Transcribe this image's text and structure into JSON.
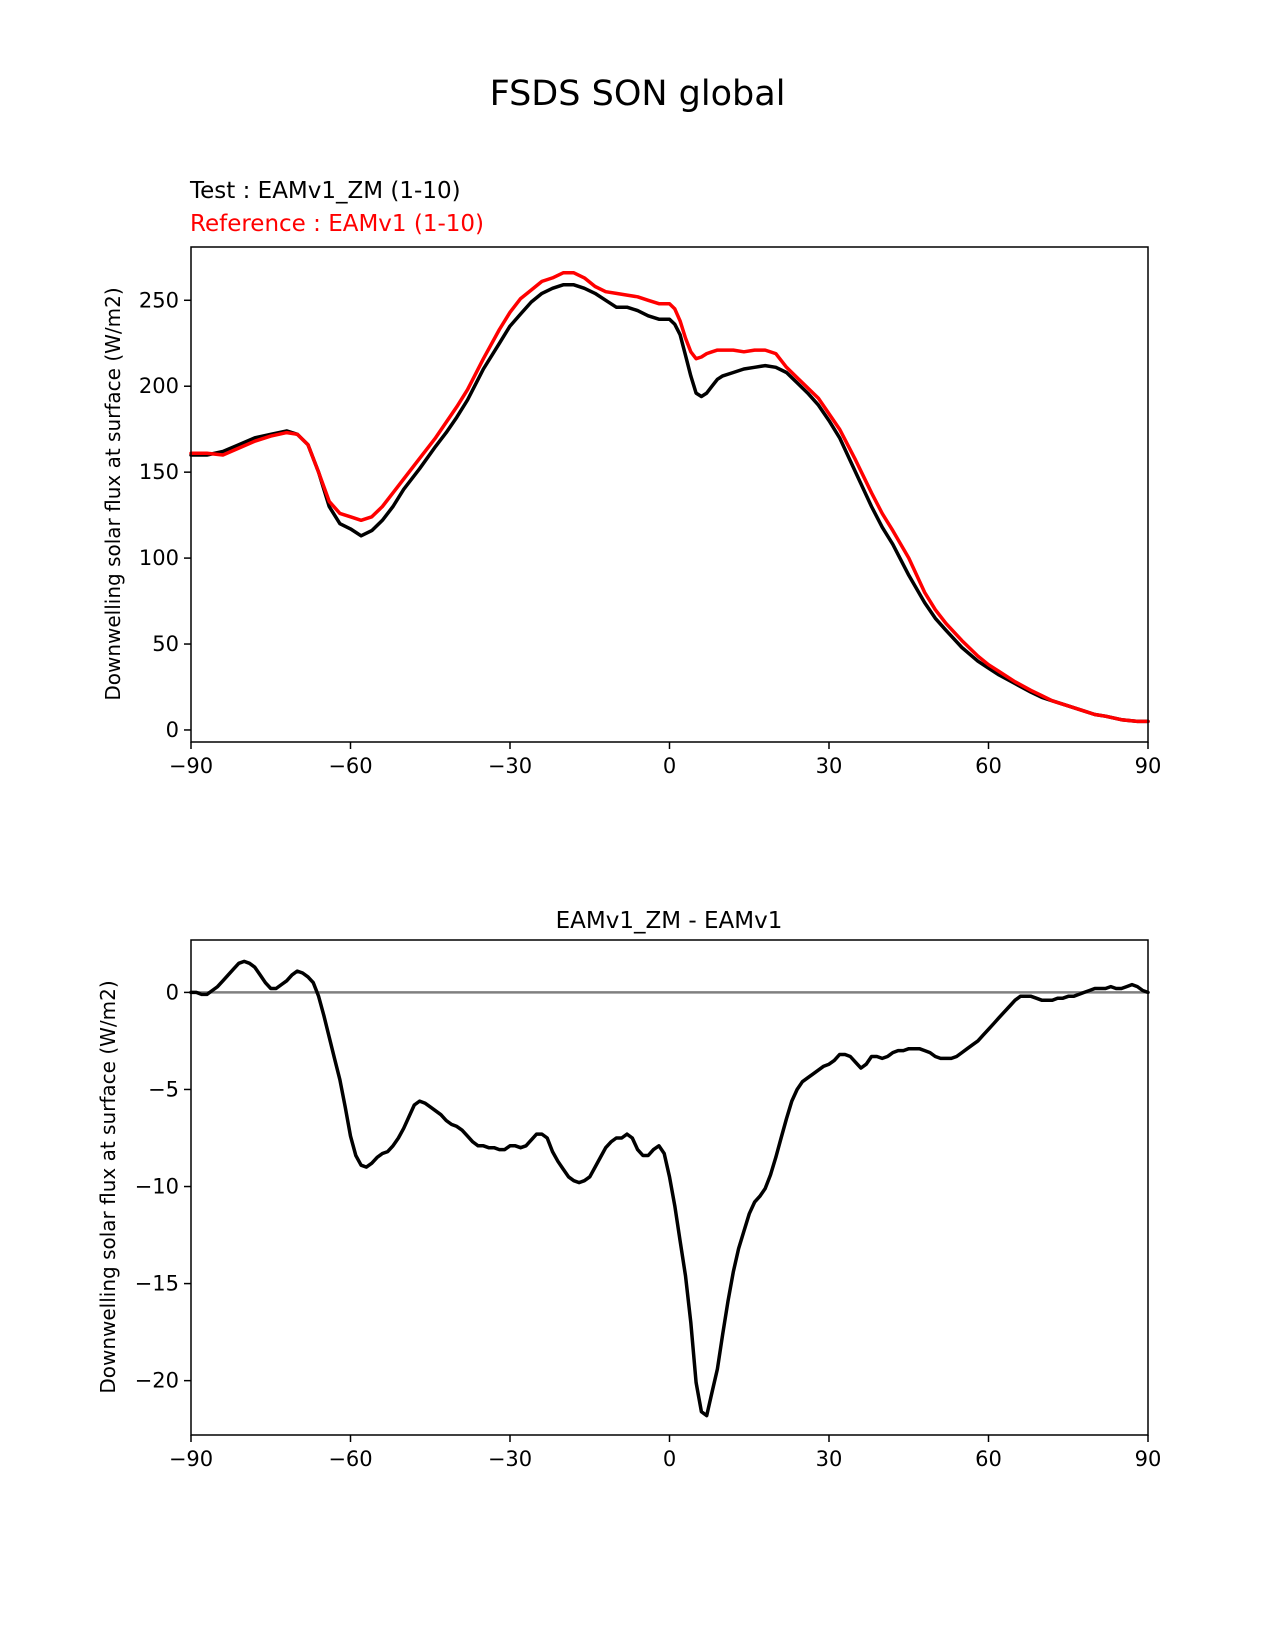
{
  "figure_title": "FSDS SON global",
  "chart_data": [
    {
      "type": "line",
      "test_label": "Test : EAMv1_ZM (1-10)",
      "reference_label": "Reference : EAMv1 (1-10)",
      "xlabel": "",
      "ylabel": "Downwelling solar flux at surface (W/m2)",
      "xlim": [
        -90,
        90
      ],
      "ylim": [
        -7,
        281
      ],
      "xticks": [
        -90,
        -60,
        -30,
        0,
        30,
        60,
        90
      ],
      "xtick_labels": [
        "−90",
        "−60",
        "−30",
        "0",
        "30",
        "60",
        "90"
      ],
      "yticks": [
        0,
        50,
        100,
        150,
        200,
        250
      ],
      "ytick_labels": [
        "0",
        "50",
        "100",
        "150",
        "200",
        "250"
      ],
      "colors": {
        "test": "#000000",
        "reference": "#ff0000"
      },
      "series": [
        {
          "name": "Test : EAMv1_ZM (1-10)",
          "color": "#000000",
          "x": [
            -90,
            -87,
            -84,
            -81,
            -78,
            -75,
            -72,
            -70,
            -68,
            -66,
            -64,
            -62,
            -60,
            -58,
            -56,
            -54,
            -52,
            -50,
            -47,
            -44,
            -42,
            -40,
            -38,
            -35,
            -32,
            -30,
            -28,
            -26,
            -24,
            -22,
            -20,
            -18,
            -16,
            -14,
            -12,
            -10,
            -8,
            -6,
            -4,
            -2,
            0,
            1,
            2,
            3,
            4,
            5,
            6,
            7,
            8,
            9,
            10,
            12,
            14,
            16,
            18,
            20,
            22,
            24,
            26,
            28,
            30,
            32,
            35,
            38,
            40,
            42,
            45,
            48,
            50,
            52,
            55,
            58,
            60,
            62,
            65,
            68,
            70,
            72,
            75,
            78,
            80,
            82,
            85,
            88,
            90
          ],
          "y": [
            160,
            160,
            162,
            166,
            170,
            172,
            174,
            172,
            166,
            150,
            130,
            120,
            117,
            113,
            116,
            122,
            130,
            140,
            152,
            165,
            173,
            182,
            192,
            210,
            225,
            235,
            242,
            249,
            254,
            257,
            259,
            259,
            257,
            254,
            250,
            246,
            246,
            244,
            241,
            239,
            239,
            236,
            230,
            218,
            206,
            196,
            194,
            196,
            200,
            204,
            206,
            208,
            210,
            211,
            212,
            211,
            208,
            202,
            196,
            189,
            180,
            170,
            150,
            130,
            118,
            108,
            90,
            74,
            65,
            58,
            48,
            40,
            36,
            32,
            27,
            22,
            19,
            17,
            14,
            11,
            9,
            8,
            6,
            5,
            5
          ]
        },
        {
          "name": "Reference : EAMv1 (1-10)",
          "color": "#ff0000",
          "x": [
            -90,
            -87,
            -84,
            -81,
            -78,
            -75,
            -72,
            -70,
            -68,
            -66,
            -64,
            -62,
            -60,
            -58,
            -56,
            -54,
            -52,
            -50,
            -47,
            -44,
            -42,
            -40,
            -38,
            -35,
            -32,
            -30,
            -28,
            -26,
            -24,
            -22,
            -20,
            -18,
            -16,
            -14,
            -12,
            -10,
            -8,
            -6,
            -4,
            -2,
            0,
            1,
            2,
            3,
            4,
            5,
            6,
            7,
            8,
            9,
            10,
            12,
            14,
            16,
            18,
            20,
            22,
            24,
            26,
            28,
            30,
            32,
            35,
            38,
            40,
            42,
            45,
            48,
            50,
            52,
            55,
            58,
            60,
            62,
            65,
            68,
            70,
            72,
            75,
            78,
            80,
            82,
            85,
            88,
            90
          ],
          "y": [
            161,
            161,
            160,
            164,
            168,
            171,
            173,
            172,
            166,
            150,
            133,
            126,
            124,
            122,
            124,
            130,
            138,
            146,
            158,
            170,
            179,
            188,
            198,
            216,
            233,
            243,
            251,
            256,
            261,
            263,
            266,
            266,
            263,
            258,
            255,
            254,
            253,
            252,
            250,
            248,
            248,
            245,
            238,
            228,
            220,
            216,
            217,
            219,
            220,
            221,
            221,
            221,
            220,
            221,
            221,
            219,
            211,
            205,
            199,
            193,
            184,
            175,
            157,
            138,
            126,
            116,
            100,
            80,
            70,
            62,
            52,
            43,
            38,
            34,
            28,
            23,
            20,
            17,
            14,
            11,
            9,
            8,
            6,
            5,
            5
          ]
        }
      ]
    },
    {
      "type": "line",
      "title": "EAMv1_ZM - EAMv1",
      "xlabel": "",
      "ylabel": "Downwelling solar flux at surface (W/m2)",
      "xlim": [
        -90,
        90
      ],
      "ylim": [
        -22.8,
        2.7
      ],
      "xticks": [
        -90,
        -60,
        -30,
        0,
        30,
        60,
        90
      ],
      "xtick_labels": [
        "−90",
        "−60",
        "−30",
        "0",
        "30",
        "60",
        "90"
      ],
      "yticks": [
        0,
        -5,
        -10,
        -15,
        -20
      ],
      "ytick_labels": [
        "0",
        "−5",
        "−10",
        "−15",
        "−20"
      ],
      "zero_line_color": "#808080",
      "series": [
        {
          "name": "EAMv1_ZM - EAMv1",
          "color": "#000000",
          "x": [
            -90,
            -89,
            -88,
            -87,
            -86,
            -85,
            -84,
            -83,
            -82,
            -81,
            -80,
            -79,
            -78,
            -77,
            -76,
            -75,
            -74,
            -73,
            -72,
            -71,
            -70,
            -69,
            -68,
            -67,
            -66,
            -65,
            -64,
            -63,
            -62,
            -61,
            -60,
            -59,
            -58,
            -57,
            -56,
            -55,
            -54,
            -53,
            -52,
            -51,
            -50,
            -49,
            -48,
            -47,
            -46,
            -45,
            -44,
            -43,
            -42,
            -41,
            -40,
            -39,
            -38,
            -37,
            -36,
            -35,
            -34,
            -33,
            -32,
            -31,
            -30,
            -29,
            -28,
            -27,
            -26,
            -25,
            -24,
            -23,
            -22,
            -21,
            -20,
            -19,
            -18,
            -17,
            -16,
            -15,
            -14,
            -13,
            -12,
            -11,
            -10,
            -9,
            -8,
            -7,
            -6,
            -5,
            -4,
            -3,
            -2,
            -1,
            0,
            1,
            2,
            3,
            4,
            5,
            6,
            7,
            8,
            9,
            10,
            11,
            12,
            13,
            14,
            15,
            16,
            17,
            18,
            19,
            20,
            21,
            22,
            23,
            24,
            25,
            26,
            27,
            28,
            29,
            30,
            31,
            32,
            33,
            34,
            35,
            36,
            37,
            38,
            39,
            40,
            41,
            42,
            43,
            44,
            45,
            46,
            47,
            48,
            49,
            50,
            51,
            52,
            53,
            54,
            55,
            56,
            57,
            58,
            59,
            60,
            61,
            62,
            63,
            64,
            65,
            66,
            67,
            68,
            69,
            70,
            71,
            72,
            73,
            74,
            75,
            76,
            77,
            78,
            79,
            80,
            81,
            82,
            83,
            84,
            85,
            86,
            87,
            88,
            89,
            90
          ],
          "y": [
            0.0,
            0.0,
            -0.1,
            -0.1,
            0.1,
            0.3,
            0.6,
            0.9,
            1.2,
            1.5,
            1.6,
            1.5,
            1.3,
            0.9,
            0.5,
            0.2,
            0.2,
            0.4,
            0.6,
            0.9,
            1.1,
            1.0,
            0.8,
            0.5,
            -0.2,
            -1.2,
            -2.3,
            -3.4,
            -4.5,
            -5.9,
            -7.4,
            -8.4,
            -8.9,
            -9.0,
            -8.8,
            -8.5,
            -8.3,
            -8.2,
            -7.9,
            -7.5,
            -7.0,
            -6.4,
            -5.8,
            -5.6,
            -5.7,
            -5.9,
            -6.1,
            -6.3,
            -6.6,
            -6.8,
            -6.9,
            -7.1,
            -7.4,
            -7.7,
            -7.9,
            -7.9,
            -8.0,
            -8.0,
            -8.1,
            -8.1,
            -7.9,
            -7.9,
            -8.0,
            -7.9,
            -7.6,
            -7.3,
            -7.3,
            -7.5,
            -8.2,
            -8.7,
            -9.1,
            -9.5,
            -9.7,
            -9.8,
            -9.7,
            -9.5,
            -9.0,
            -8.5,
            -8.0,
            -7.7,
            -7.5,
            -7.5,
            -7.3,
            -7.5,
            -8.1,
            -8.4,
            -8.4,
            -8.1,
            -7.9,
            -8.3,
            -9.5,
            -11.0,
            -12.8,
            -14.6,
            -17.0,
            -20.1,
            -21.6,
            -21.8,
            -20.6,
            -19.4,
            -17.6,
            -15.9,
            -14.4,
            -13.2,
            -12.3,
            -11.4,
            -10.8,
            -10.5,
            -10.1,
            -9.4,
            -8.5,
            -7.5,
            -6.5,
            -5.6,
            -5.0,
            -4.6,
            -4.4,
            -4.2,
            -4.0,
            -3.8,
            -3.7,
            -3.5,
            -3.2,
            -3.2,
            -3.3,
            -3.6,
            -3.9,
            -3.7,
            -3.3,
            -3.3,
            -3.4,
            -3.3,
            -3.1,
            -3.0,
            -3.0,
            -2.9,
            -2.9,
            -2.9,
            -3.0,
            -3.1,
            -3.3,
            -3.4,
            -3.4,
            -3.4,
            -3.3,
            -3.1,
            -2.9,
            -2.7,
            -2.5,
            -2.2,
            -1.9,
            -1.6,
            -1.3,
            -1.0,
            -0.7,
            -0.4,
            -0.2,
            -0.2,
            -0.2,
            -0.3,
            -0.4,
            -0.4,
            -0.4,
            -0.3,
            -0.3,
            -0.2,
            -0.2,
            -0.1,
            0.0,
            0.1,
            0.2,
            0.2,
            0.2,
            0.3,
            0.2,
            0.2,
            0.3,
            0.4,
            0.3,
            0.1,
            0.0
          ]
        }
      ]
    }
  ]
}
